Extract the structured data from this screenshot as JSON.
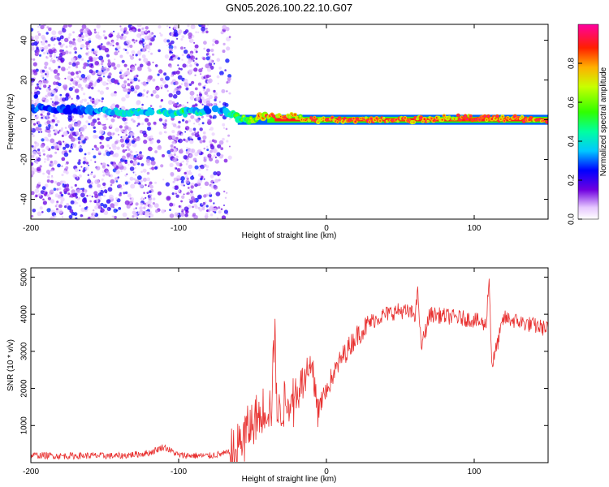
{
  "title": "GN05.2026.100.22.10.G07",
  "chart_data": [
    {
      "type": "heatmap",
      "xlabel": "Height of straight line (km)",
      "ylabel": "Frequency (Hz)",
      "xlim": [
        -200,
        150
      ],
      "ylim": [
        -50,
        48
      ],
      "xticks": [
        -200,
        -100,
        0,
        100
      ],
      "yticks": [
        -40,
        -20,
        0,
        20,
        40
      ],
      "colorbar": {
        "label": "Normalized spectral amplitude",
        "range": [
          0,
          1
        ],
        "ticks": [
          0.0,
          0.2,
          0.4,
          0.6,
          0.8
        ]
      },
      "ridge": {
        "description_x": [
          -200,
          -170,
          -140,
          -120,
          -100,
          -80,
          -70,
          -60,
          -50,
          -40,
          -30,
          -20,
          -10,
          0,
          40,
          60,
          80,
          100,
          150
        ],
        "frequency": [
          6,
          5,
          4,
          4,
          3,
          5,
          5,
          1,
          0,
          2,
          1,
          2,
          0,
          0,
          0,
          0,
          1,
          1,
          0
        ],
        "amplitude": [
          0.35,
          0.3,
          0.45,
          0.45,
          0.5,
          0.4,
          0.4,
          0.55,
          0.7,
          0.9,
          0.95,
          0.8,
          0.9,
          0.95,
          0.95,
          0.95,
          0.9,
          0.95,
          0.95
        ]
      }
    },
    {
      "type": "line",
      "xlabel": "Height of straight line (km)",
      "ylabel": "SNR (10 * v/v)",
      "xlim": [
        -200,
        150
      ],
      "ylim": [
        0,
        5250
      ],
      "xticks": [
        -200,
        -100,
        0,
        100
      ],
      "yticks": [
        1000,
        2000,
        3000,
        4000,
        5000
      ],
      "color": "#e8302f",
      "series": [
        {
          "name": "SNR",
          "x": [
            -200,
            -180,
            -160,
            -140,
            -120,
            -110,
            -100,
            -80,
            -70,
            -62,
            -55,
            -48,
            -42,
            -37,
            -35,
            -33,
            -30,
            -20,
            -10,
            -5,
            0,
            10,
            20,
            30,
            40,
            50,
            60,
            62,
            64,
            70,
            80,
            90,
            100,
            108,
            110,
            112,
            120,
            130,
            140,
            150
          ],
          "y": [
            200,
            180,
            190,
            180,
            260,
            430,
            200,
            180,
            240,
            300,
            800,
            1200,
            1500,
            1500,
            3800,
            1200,
            1500,
            2000,
            2600,
            1500,
            2000,
            2800,
            3400,
            3800,
            4000,
            4100,
            4000,
            4600,
            3100,
            4000,
            3950,
            3900,
            3850,
            3700,
            5000,
            2600,
            3900,
            3800,
            3700,
            3600
          ]
        }
      ]
    }
  ]
}
